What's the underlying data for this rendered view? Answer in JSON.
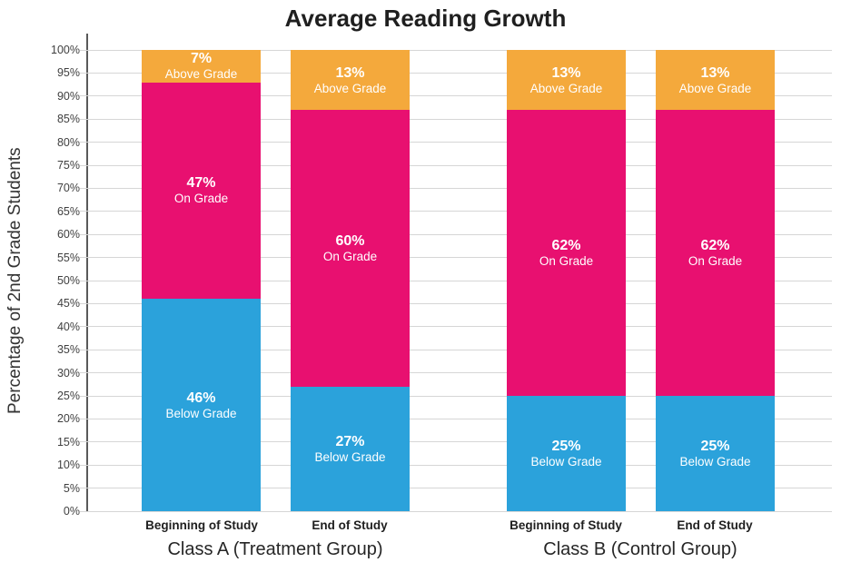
{
  "chart_data": {
    "type": "bar",
    "stacked": true,
    "title": "Average Reading Growth",
    "ylabel": "Percentage of 2nd Grade Students",
    "ylim": [
      0,
      100
    ],
    "ytick_step": 5,
    "yticks": [
      "0%",
      "5%",
      "10%",
      "15%",
      "20%",
      "25%",
      "30%",
      "35%",
      "40%",
      "45%",
      "50%",
      "55%",
      "60%",
      "65%",
      "70%",
      "75%",
      "80%",
      "85%",
      "90%",
      "95%",
      "100%"
    ],
    "categories": [
      "Beginning of Study",
      "End of Study",
      "Beginning of Study",
      "End of Study"
    ],
    "groups": [
      {
        "label": "Class A (Treatment Group)"
      },
      {
        "label": "Class B (Control Group)"
      }
    ],
    "series": [
      {
        "name": "Below Grade",
        "color": "#2BA2DB",
        "values": [
          46,
          27,
          25,
          25
        ]
      },
      {
        "name": "On Grade",
        "color": "#E81070",
        "values": [
          47,
          60,
          62,
          62
        ]
      },
      {
        "name": "Above Grade",
        "color": "#F4A93C",
        "values": [
          7,
          13,
          13,
          13
        ]
      }
    ],
    "legend": "none",
    "grid": "horizontal",
    "colors": {
      "gridline": "#D6D6D6",
      "axis_line": "#595959",
      "tick_text": "#3F3F3F",
      "title_text": "#1F1F1F",
      "bar_label_text": "#FFFFFF"
    }
  }
}
